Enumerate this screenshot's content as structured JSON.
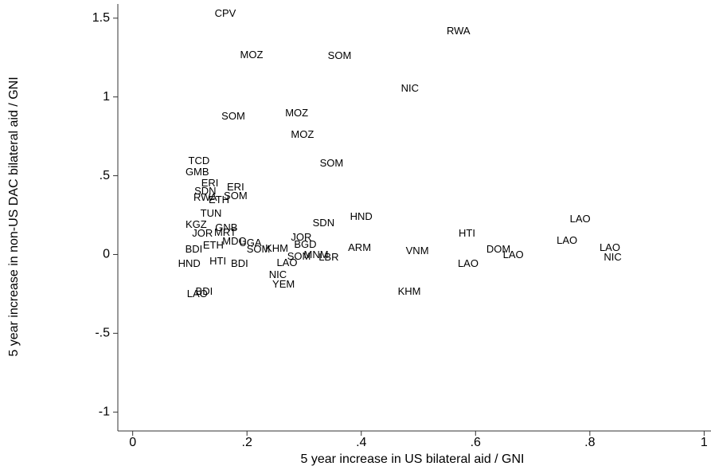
{
  "chart_data": {
    "type": "scatter",
    "xlabel": "5 year increase in US bilateral aid / GNI",
    "ylabel": "5 year increase in non-US DAC bilateral aid / GNI",
    "xlim": [
      -0.026,
      1.012
    ],
    "ylim": [
      -1.12,
      1.59
    ],
    "xticks": [
      0,
      {
        "value": 0.2,
        "label": ".2"
      },
      {
        "value": 0.4,
        "label": ".4"
      },
      {
        "value": 0.6,
        "label": ".6"
      },
      {
        "value": 0.8,
        "label": ".8"
      },
      1
    ],
    "yticks": [
      -1,
      {
        "value": -0.5,
        "label": "-.5"
      },
      0,
      {
        "value": 0.5,
        "label": ".5"
      },
      1,
      1.5
    ],
    "color": "#000000",
    "labels": [
      "CPV",
      "RWA",
      "MOZ",
      "SOM",
      "NIC",
      "SOM",
      "MOZ",
      "MOZ",
      "SOM",
      "TCD",
      "GMB",
      "ERI",
      "ERI",
      "SDN",
      "RWA",
      "SOM",
      "ETH",
      "TUN",
      "KGZ",
      "GNB",
      "SDN",
      "HND",
      "JOR",
      "BGD",
      "ARM",
      "HTI",
      "VNM",
      "LBR",
      "MNM",
      "SOM",
      "LAO",
      "NIC",
      "YEM",
      "KHM",
      "LAO",
      "DOM",
      "LAO",
      "LAO",
      "LAO",
      "LAO",
      "NIC",
      "BDI",
      "LAO",
      "HND",
      "BDI",
      "HTI",
      "KHM",
      "JOR",
      "MRT",
      "BDI",
      "ETH",
      "MDG",
      "UGA",
      "SOM"
    ],
    "x": [
      0.162,
      0.57,
      0.208,
      0.362,
      0.485,
      0.176,
      0.287,
      0.297,
      0.348,
      0.116,
      0.113,
      0.135,
      0.18,
      0.127,
      0.127,
      0.18,
      0.151,
      0.137,
      0.111,
      0.164,
      0.334,
      0.4,
      0.295,
      0.302,
      0.397,
      0.585,
      0.498,
      0.343,
      0.321,
      0.291,
      0.27,
      0.254,
      0.264,
      0.484,
      0.587,
      0.64,
      0.666,
      0.783,
      0.76,
      0.835,
      0.84,
      0.125,
      0.113,
      0.099,
      0.187,
      0.149,
      0.252,
      0.122,
      0.162,
      0.107,
      0.141,
      0.178,
      0.206,
      0.22
    ],
    "values": [
      1.527,
      1.416,
      1.264,
      1.259,
      1.052,
      0.875,
      0.895,
      0.758,
      0.576,
      0.592,
      0.521,
      0.45,
      0.425,
      0.399,
      0.359,
      0.369,
      0.344,
      0.258,
      0.187,
      0.167,
      0.197,
      0.238,
      0.106,
      0.061,
      0.04,
      0.131,
      0.02,
      -0.02,
      -0.005,
      -0.015,
      -0.056,
      -0.131,
      -0.192,
      -0.238,
      -0.061,
      0.03,
      -0.005,
      0.222,
      0.086,
      0.04,
      -0.02,
      -0.238,
      -0.253,
      -0.061,
      -0.061,
      -0.045,
      0.035,
      0.131,
      0.136,
      0.03,
      0.056,
      0.081,
      0.071,
      0.03
    ]
  }
}
